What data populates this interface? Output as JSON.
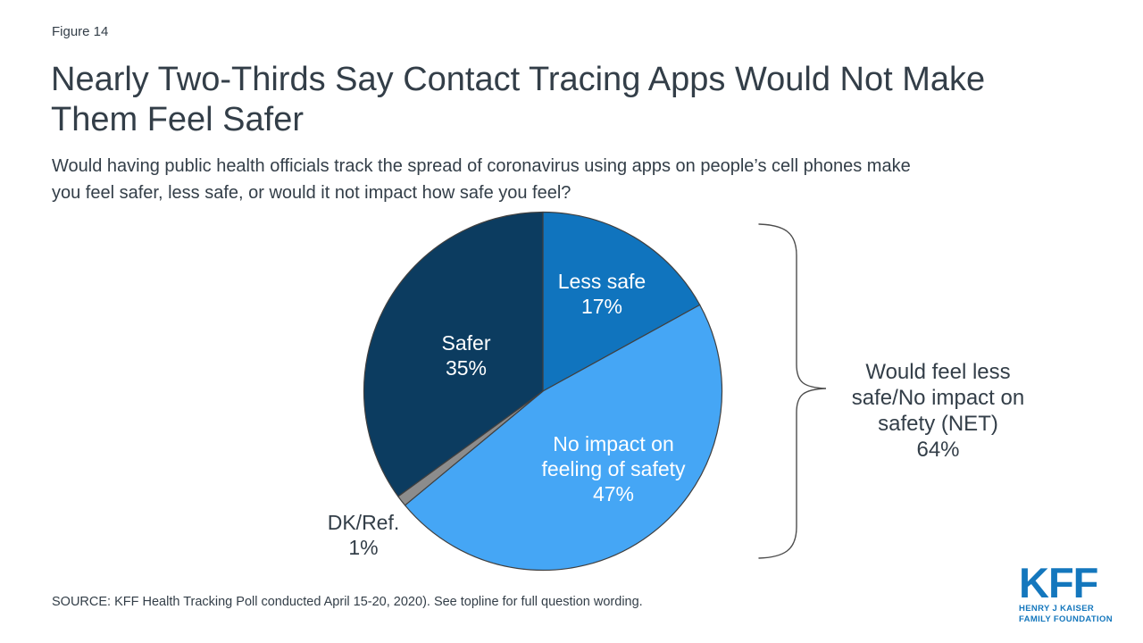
{
  "header": {
    "figure_label": "Figure 14",
    "title_lines": [
      "Nearly Two-Thirds Say Contact Tracing Apps Would Not Make",
      "Them Feel Safer"
    ],
    "subtitle_lines": [
      "Would having public health officials track the spread of coronavirus using apps on people’s cell phones make",
      "you feel safer, less safe, or would it not impact how safe you feel?"
    ]
  },
  "chart_data": {
    "type": "pie",
    "title": "Nearly Two-Thirds Say Contact Tracing Apps Would Not Make Them Feel Safer",
    "subtitle": "Would having public health officials track the spread of coronavirus using apps on people’s cell phones make you feel safer, less safe, or would it not impact how safe you feel?",
    "start_angle": "12-oclock",
    "direction": "clockwise",
    "outline_color": "#404040",
    "slices": [
      {
        "label": "Less safe",
        "value": 17,
        "pct_label": "17%",
        "color": "#1074BE",
        "text_color": "#ffffff"
      },
      {
        "label": "No impact on feeling of safety",
        "value": 47,
        "pct_label": "47%",
        "color": "#45A6F5",
        "text_color": "#ffffff"
      },
      {
        "label": "DK/Ref.",
        "value": 1,
        "pct_label": "1%",
        "color": "#8C8C8C",
        "text_color": "#333E48"
      },
      {
        "label": "Safer",
        "value": 35,
        "pct_label": "35%",
        "color": "#0C3C60",
        "text_color": "#ffffff"
      }
    ],
    "annotation": {
      "label": "Would feel less safe/No impact on safety (NET)",
      "value": 64,
      "value_label": "64%",
      "bracket_color": "#4D4D4D"
    }
  },
  "footer": {
    "source": "SOURCE: KFF Health Tracking Poll conducted April 15-20, 2020). See topline for full question wording.",
    "logo": {
      "text": "KFF",
      "line1": "HENRY J KAISER",
      "line2": "FAMILY FOUNDATION",
      "color": "#1477BD"
    }
  }
}
